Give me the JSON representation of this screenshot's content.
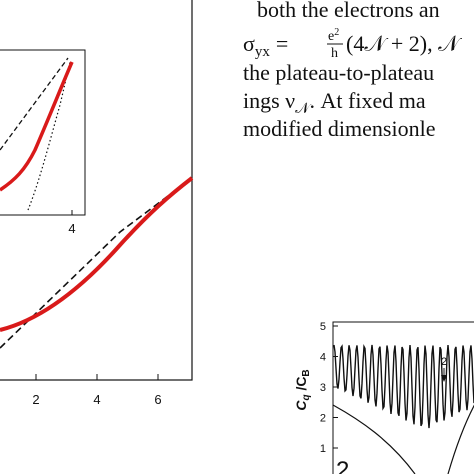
{
  "text": {
    "line1": "both the electrons an",
    "line2": {
      "sigma": "σ",
      "sigma_sub": "yx",
      "equals": "=",
      "frac_num": "e",
      "frac_num_sup": "2",
      "frac_den": "h",
      "rest": "(4𝒩 + 2), 𝒩"
    },
    "line3": "the plateau-to-plateau",
    "line4": {
      "start": "ings ν",
      "sub": "𝒩",
      "end": ". At fixed ma"
    },
    "line5": "modified dimensionle"
  },
  "left_figure": {
    "xticks": [
      2,
      4,
      6
    ],
    "inset_xticks": [
      4
    ]
  },
  "right_figure": {
    "ylabel": {
      "main": "C",
      "main_sub": "q",
      "sep": " /C",
      "den_sub": "B"
    },
    "yticks": [
      1,
      2,
      3,
      4,
      5
    ],
    "arrow_label": "2",
    "panel_label": "2"
  }
}
